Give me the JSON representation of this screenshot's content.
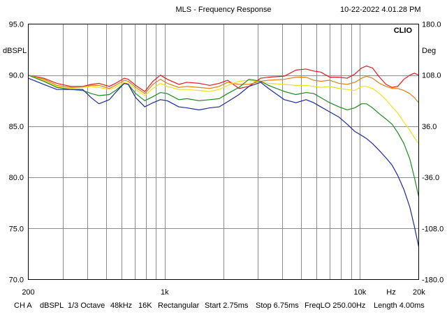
{
  "window": {
    "title": "MLS - Frequency Response",
    "timestamp": "10-22-2022 4.01.28 PM",
    "brand": "CLIO"
  },
  "status_bar": {
    "channel": "CH A",
    "unit": "dBSPL",
    "smoothing": "1/3 Octave",
    "sample_rate": "48kHz",
    "size": "16K",
    "window": "Rectangular",
    "start": "Start 2.75ms",
    "stop": "Stop 6.75ms",
    "freq_lo": "FreqLO 250.00Hz",
    "length": "Length 4.00ms"
  },
  "chart_data": {
    "type": "line",
    "title": "MLS - Frequency Response",
    "xlabel": "Hz",
    "ylabel_left": "dBSPL",
    "ylabel_right": "Deg",
    "x_scale": "log",
    "xlim": [
      200,
      20000
    ],
    "ylim": [
      70,
      95
    ],
    "y2lim": [
      -180,
      180
    ],
    "grid": true,
    "x_ticks": [
      {
        "value": 200,
        "label": "200"
      },
      {
        "value": 1000,
        "label": "1k"
      },
      {
        "value": 10000,
        "label": "10k"
      },
      {
        "value": 20000,
        "label": "20k"
      }
    ],
    "x_unit_label": "Hz",
    "y_ticks": [
      {
        "value": 95,
        "label": "95.0"
      },
      {
        "value": 90,
        "label": "90.0"
      },
      {
        "value": 85,
        "label": "85.0"
      },
      {
        "value": 80,
        "label": "80.0"
      },
      {
        "value": 75,
        "label": "75.0"
      },
      {
        "value": 70,
        "label": "70.0"
      }
    ],
    "y2_ticks": [
      {
        "value": 180,
        "label": "180.0"
      },
      {
        "value": 108,
        "label": "108.0"
      },
      {
        "value": 36,
        "label": "36.0"
      },
      {
        "value": -36,
        "label": "-36.0"
      },
      {
        "value": -108,
        "label": "-108.0"
      },
      {
        "value": -180,
        "label": "-180.0"
      }
    ],
    "series": [
      {
        "name": "red",
        "color": "#dd1c1c",
        "points": [
          [
            200,
            90.0
          ],
          [
            240,
            89.7
          ],
          [
            280,
            89.2
          ],
          [
            330,
            88.9
          ],
          [
            380,
            88.9
          ],
          [
            420,
            89.1
          ],
          [
            460,
            89.2
          ],
          [
            520,
            88.9
          ],
          [
            560,
            89.2
          ],
          [
            620,
            89.7
          ],
          [
            650,
            89.6
          ],
          [
            710,
            89.0
          ],
          [
            790,
            88.4
          ],
          [
            870,
            89.4
          ],
          [
            950,
            90.0
          ],
          [
            1030,
            89.6
          ],
          [
            1180,
            89.1
          ],
          [
            1300,
            89.3
          ],
          [
            1500,
            89.2
          ],
          [
            1700,
            89.0
          ],
          [
            1900,
            89.2
          ],
          [
            2100,
            89.5
          ],
          [
            2400,
            88.7
          ],
          [
            2700,
            88.9
          ],
          [
            3100,
            89.7
          ],
          [
            3400,
            89.8
          ],
          [
            4100,
            89.9
          ],
          [
            4700,
            90.5
          ],
          [
            5300,
            90.6
          ],
          [
            5800,
            90.4
          ],
          [
            6300,
            90.3
          ],
          [
            7000,
            89.8
          ],
          [
            7800,
            89.8
          ],
          [
            8600,
            89.7
          ],
          [
            9400,
            90.1
          ],
          [
            10200,
            90.7
          ],
          [
            10800,
            90.9
          ],
          [
            11600,
            90.7
          ],
          [
            12600,
            89.8
          ],
          [
            13600,
            89.1
          ],
          [
            14600,
            88.8
          ],
          [
            15600,
            88.9
          ],
          [
            16800,
            89.6
          ],
          [
            18000,
            90.0
          ],
          [
            19000,
            90.2
          ],
          [
            20000,
            90.0
          ]
        ]
      },
      {
        "name": "orange",
        "color": "#e0801e",
        "points": [
          [
            200,
            90.0
          ],
          [
            240,
            89.6
          ],
          [
            280,
            89.0
          ],
          [
            330,
            88.8
          ],
          [
            380,
            88.8
          ],
          [
            420,
            89.0
          ],
          [
            460,
            89.0
          ],
          [
            520,
            88.7
          ],
          [
            560,
            89.0
          ],
          [
            620,
            89.5
          ],
          [
            650,
            89.4
          ],
          [
            710,
            88.8
          ],
          [
            790,
            88.2
          ],
          [
            870,
            89.1
          ],
          [
            950,
            89.6
          ],
          [
            1030,
            89.2
          ],
          [
            1180,
            88.8
          ],
          [
            1300,
            88.9
          ],
          [
            1500,
            88.8
          ],
          [
            1700,
            88.7
          ],
          [
            1900,
            88.9
          ],
          [
            2100,
            89.3
          ],
          [
            2400,
            89.1
          ],
          [
            2700,
            89.1
          ],
          [
            3100,
            89.4
          ],
          [
            3400,
            89.5
          ],
          [
            4100,
            89.6
          ],
          [
            4700,
            89.8
          ],
          [
            5300,
            89.8
          ],
          [
            5800,
            89.5
          ],
          [
            6300,
            89.4
          ],
          [
            7000,
            89.5
          ],
          [
            7800,
            89.2
          ],
          [
            8600,
            89.1
          ],
          [
            9400,
            89.3
          ],
          [
            10200,
            89.7
          ],
          [
            10800,
            89.9
          ],
          [
            11600,
            89.7
          ],
          [
            12600,
            89.2
          ],
          [
            13600,
            88.9
          ],
          [
            14600,
            88.7
          ],
          [
            15600,
            88.7
          ],
          [
            16800,
            88.5
          ],
          [
            18000,
            88.2
          ],
          [
            19000,
            87.8
          ],
          [
            20000,
            87.3
          ]
        ]
      },
      {
        "name": "yellow",
        "color": "#f0e020",
        "points": [
          [
            200,
            90.0
          ],
          [
            240,
            89.5
          ],
          [
            280,
            88.9
          ],
          [
            330,
            88.7
          ],
          [
            380,
            88.8
          ],
          [
            420,
            88.9
          ],
          [
            460,
            88.8
          ],
          [
            520,
            88.6
          ],
          [
            560,
            88.8
          ],
          [
            620,
            89.3
          ],
          [
            650,
            89.2
          ],
          [
            710,
            88.6
          ],
          [
            790,
            88.0
          ],
          [
            870,
            88.7
          ],
          [
            950,
            89.2
          ],
          [
            1030,
            88.9
          ],
          [
            1180,
            88.6
          ],
          [
            1300,
            88.6
          ],
          [
            1500,
            88.5
          ],
          [
            1700,
            88.4
          ],
          [
            1900,
            88.6
          ],
          [
            2100,
            89.0
          ],
          [
            2400,
            89.4
          ],
          [
            2700,
            89.5
          ],
          [
            3100,
            89.3
          ],
          [
            3400,
            89.2
          ],
          [
            4100,
            89.1
          ],
          [
            4700,
            89.0
          ],
          [
            5300,
            89.0
          ],
          [
            5800,
            88.9
          ],
          [
            6300,
            88.8
          ],
          [
            7000,
            88.9
          ],
          [
            7800,
            88.7
          ],
          [
            8600,
            88.6
          ],
          [
            9400,
            88.5
          ],
          [
            10200,
            88.9
          ],
          [
            10800,
            88.9
          ],
          [
            11600,
            88.7
          ],
          [
            12600,
            88.2
          ],
          [
            13600,
            87.6
          ],
          [
            14600,
            86.9
          ],
          [
            15600,
            86.3
          ],
          [
            16800,
            85.4
          ],
          [
            18000,
            84.6
          ],
          [
            19000,
            83.9
          ],
          [
            20000,
            83.3
          ]
        ]
      },
      {
        "name": "green",
        "color": "#1c8a1c",
        "points": [
          [
            200,
            90.0
          ],
          [
            240,
            89.4
          ],
          [
            280,
            88.8
          ],
          [
            330,
            88.6
          ],
          [
            380,
            88.5
          ],
          [
            420,
            88.2
          ],
          [
            460,
            88.0
          ],
          [
            520,
            88.1
          ],
          [
            560,
            88.5
          ],
          [
            620,
            89.2
          ],
          [
            650,
            89.1
          ],
          [
            710,
            88.2
          ],
          [
            790,
            87.5
          ],
          [
            870,
            87.9
          ],
          [
            950,
            88.3
          ],
          [
            1030,
            88.2
          ],
          [
            1180,
            87.6
          ],
          [
            1300,
            87.7
          ],
          [
            1500,
            87.5
          ],
          [
            1700,
            87.6
          ],
          [
            1900,
            87.7
          ],
          [
            2100,
            88.2
          ],
          [
            2400,
            88.8
          ],
          [
            2700,
            89.6
          ],
          [
            3100,
            89.4
          ],
          [
            3400,
            89.0
          ],
          [
            4100,
            88.4
          ],
          [
            4700,
            88.1
          ],
          [
            5300,
            88.3
          ],
          [
            5800,
            88.2
          ],
          [
            6300,
            87.8
          ],
          [
            7000,
            87.3
          ],
          [
            7800,
            86.9
          ],
          [
            8600,
            86.6
          ],
          [
            9400,
            86.8
          ],
          [
            10200,
            87.2
          ],
          [
            10800,
            87.2
          ],
          [
            11600,
            86.8
          ],
          [
            12600,
            86.2
          ],
          [
            13600,
            85.7
          ],
          [
            14600,
            85.2
          ],
          [
            15600,
            84.4
          ],
          [
            16800,
            83.3
          ],
          [
            18000,
            81.8
          ],
          [
            19000,
            80.0
          ],
          [
            20000,
            78.1
          ]
        ]
      },
      {
        "name": "blue",
        "color": "#1a2a9c",
        "points": [
          [
            200,
            89.7
          ],
          [
            240,
            89.1
          ],
          [
            280,
            88.6
          ],
          [
            330,
            88.6
          ],
          [
            380,
            88.6
          ],
          [
            420,
            87.8
          ],
          [
            460,
            87.2
          ],
          [
            520,
            87.6
          ],
          [
            560,
            88.3
          ],
          [
            620,
            89.2
          ],
          [
            650,
            89.1
          ],
          [
            710,
            87.8
          ],
          [
            790,
            86.9
          ],
          [
            870,
            87.3
          ],
          [
            950,
            87.6
          ],
          [
            1030,
            87.5
          ],
          [
            1180,
            86.9
          ],
          [
            1300,
            86.8
          ],
          [
            1500,
            86.6
          ],
          [
            1700,
            86.8
          ],
          [
            1900,
            86.9
          ],
          [
            2100,
            87.4
          ],
          [
            2400,
            88.1
          ],
          [
            2700,
            88.9
          ],
          [
            3100,
            89.3
          ],
          [
            3400,
            88.7
          ],
          [
            4100,
            87.6
          ],
          [
            4700,
            87.3
          ],
          [
            5300,
            87.6
          ],
          [
            5800,
            87.3
          ],
          [
            6300,
            86.9
          ],
          [
            7000,
            86.4
          ],
          [
            7800,
            85.9
          ],
          [
            8600,
            85.2
          ],
          [
            9400,
            84.5
          ],
          [
            10200,
            84.1
          ],
          [
            10800,
            83.8
          ],
          [
            11600,
            83.3
          ],
          [
            12600,
            82.6
          ],
          [
            13600,
            81.9
          ],
          [
            14600,
            81.2
          ],
          [
            15600,
            80.2
          ],
          [
            16800,
            78.8
          ],
          [
            18000,
            77.1
          ],
          [
            19000,
            75.2
          ],
          [
            20000,
            73.2
          ]
        ]
      }
    ]
  }
}
